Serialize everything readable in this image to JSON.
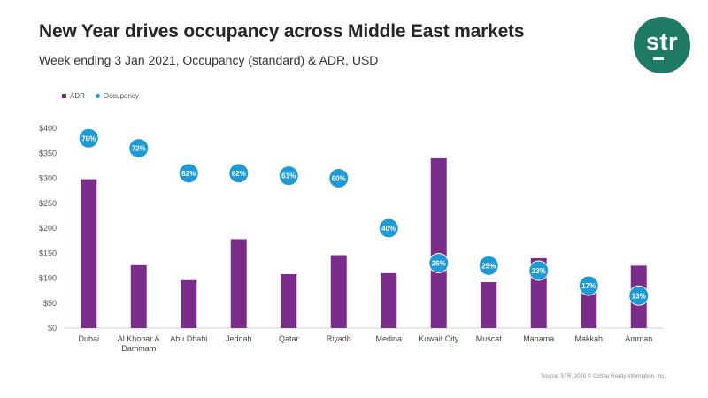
{
  "title": "New Year drives occupancy across Middle East markets",
  "subtitle": "Week ending 3 Jan 2021, Occupancy (standard) & ADR, USD",
  "logo": {
    "text": "str"
  },
  "source": "Source: STR, 2020 © CoStar Realty Information, Inc.",
  "colors": {
    "bar": "#7b2d8b",
    "marker": "#1f9ad6",
    "logo_bg": "#1f7a65"
  },
  "chart_data": {
    "type": "bar",
    "categories": [
      "Dubai",
      "Al Khobar & Dammam",
      "Abu Dhabi",
      "Jeddah",
      "Qatar",
      "Riyadh",
      "Medina",
      "Kuwait City",
      "Muscat",
      "Manama",
      "Makkah",
      "Amman"
    ],
    "category_lines": [
      [
        "Dubai"
      ],
      [
        "Al Khobar &",
        "Dammam"
      ],
      [
        "Abu Dhabi"
      ],
      [
        "Jeddah"
      ],
      [
        "Qatar"
      ],
      [
        "Riyadh"
      ],
      [
        "Medina"
      ],
      [
        "Kuwait City"
      ],
      [
        "Muscat"
      ],
      [
        "Manama"
      ],
      [
        "Makkah"
      ],
      [
        "Amman"
      ]
    ],
    "series": [
      {
        "name": "ADR",
        "type": "bar",
        "values": [
          298,
          126,
          96,
          178,
          108,
          146,
          110,
          340,
          92,
          140,
          78,
          125
        ]
      },
      {
        "name": "Occupancy",
        "type": "scatter",
        "values": [
          76,
          72,
          62,
          62,
          61,
          60,
          40,
          26,
          25,
          23,
          17,
          13
        ],
        "labels": [
          "76%",
          "72%",
          "62%",
          "62%",
          "61%",
          "60%",
          "40%",
          "26%",
          "25%",
          "23%",
          "17%",
          "13%"
        ]
      }
    ],
    "ylim": [
      0,
      400
    ],
    "y_ticks": [
      0,
      50,
      100,
      150,
      200,
      250,
      300,
      350,
      400
    ],
    "y_tick_labels": [
      "$0",
      "$50",
      "$100",
      "$150",
      "$200",
      "$250",
      "$300",
      "$350",
      "$400"
    ],
    "occupancy_axis_range": [
      0,
      80
    ],
    "legend_position": "top-left",
    "grid": false
  }
}
